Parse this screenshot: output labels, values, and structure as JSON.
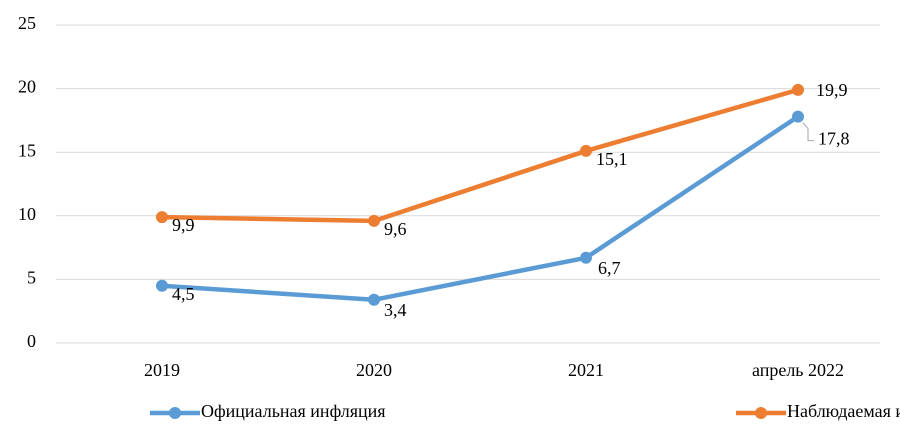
{
  "chart_data": {
    "type": "line",
    "categories": [
      "2019",
      "2020",
      "2021",
      "апрель 2022"
    ],
    "series": [
      {
        "name": "Официальная инфляция",
        "color": "#5b9bd5",
        "values": [
          4.5,
          3.4,
          6.7,
          17.8
        ],
        "value_labels": [
          "4,5",
          "3,4",
          "6,7",
          "17,8"
        ]
      },
      {
        "name": "Наблюдаемая инфляция",
        "color": "#ed7d31",
        "values": [
          9.9,
          9.6,
          15.1,
          19.9
        ],
        "value_labels": [
          "9,9",
          "9,6",
          "15,1",
          "19,9"
        ]
      }
    ],
    "ylim": [
      0,
      25
    ],
    "yticks": [
      0,
      5,
      10,
      15,
      20,
      25
    ],
    "grid": true,
    "legend": "bottom"
  }
}
